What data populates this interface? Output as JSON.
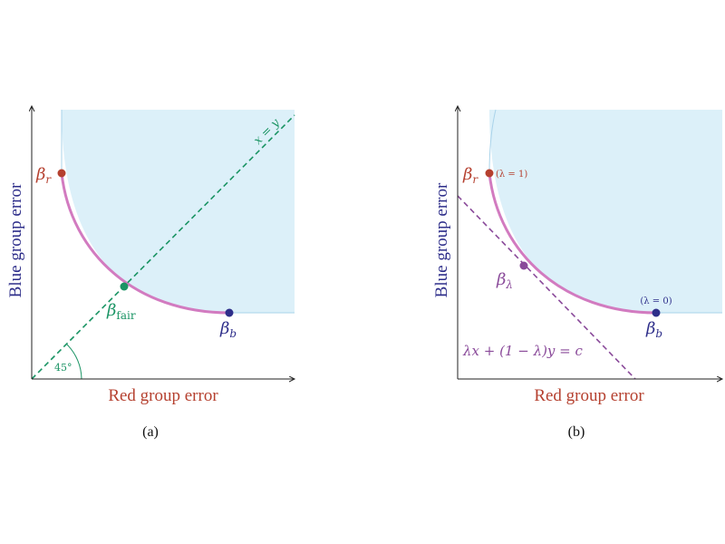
{
  "colors": {
    "red": "#b5402f",
    "blue": "#2e2e8a",
    "green": "#1a9464",
    "purple": "#8a4a9a",
    "curve": "#d27bc0",
    "region": "#dcf0f9",
    "region_stroke": "#a9d3ea"
  },
  "panel_a": {
    "caption": "(a)",
    "xlabel": "Red group error",
    "ylabel": "Blue group error",
    "beta_r": {
      "base": "β",
      "sub": "r"
    },
    "beta_b": {
      "base": "β",
      "sub": "b"
    },
    "beta_fair": {
      "base": "β",
      "sub": "fair"
    },
    "diag_label": "x = y",
    "angle_label": "45°"
  },
  "panel_b": {
    "caption": "(b)",
    "xlabel": "Red group error",
    "ylabel": "Blue group error",
    "beta_r": {
      "base": "β",
      "sub": "r"
    },
    "beta_b": {
      "base": "β",
      "sub": "b"
    },
    "beta_lambda": {
      "base": "β",
      "sub": "λ"
    },
    "lambda1": "(λ = 1)",
    "lambda0": "(λ = 0)",
    "line_label": "λx + (1 − λ)y = c"
  }
}
